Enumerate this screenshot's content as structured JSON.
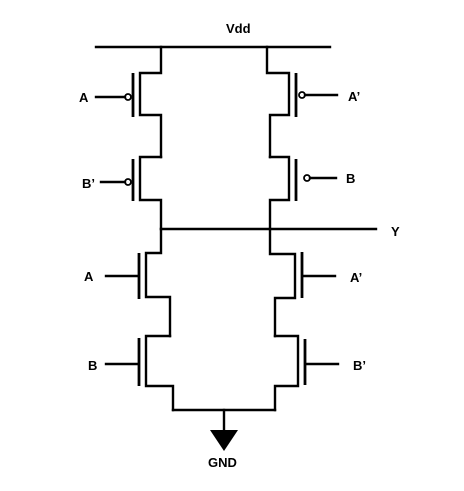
{
  "circuit": {
    "supply_label": "Vdd",
    "ground_label": "GND",
    "output_label": "Y",
    "inputs": {
      "pmos_left_top": "A",
      "pmos_left_bottom": "B’",
      "pmos_right_top": "A’",
      "pmos_right_bottom": "B",
      "nmos_left_top": "A",
      "nmos_left_bottom": "B",
      "nmos_right_top": "A’",
      "nmos_right_bottom": "B’"
    }
  }
}
